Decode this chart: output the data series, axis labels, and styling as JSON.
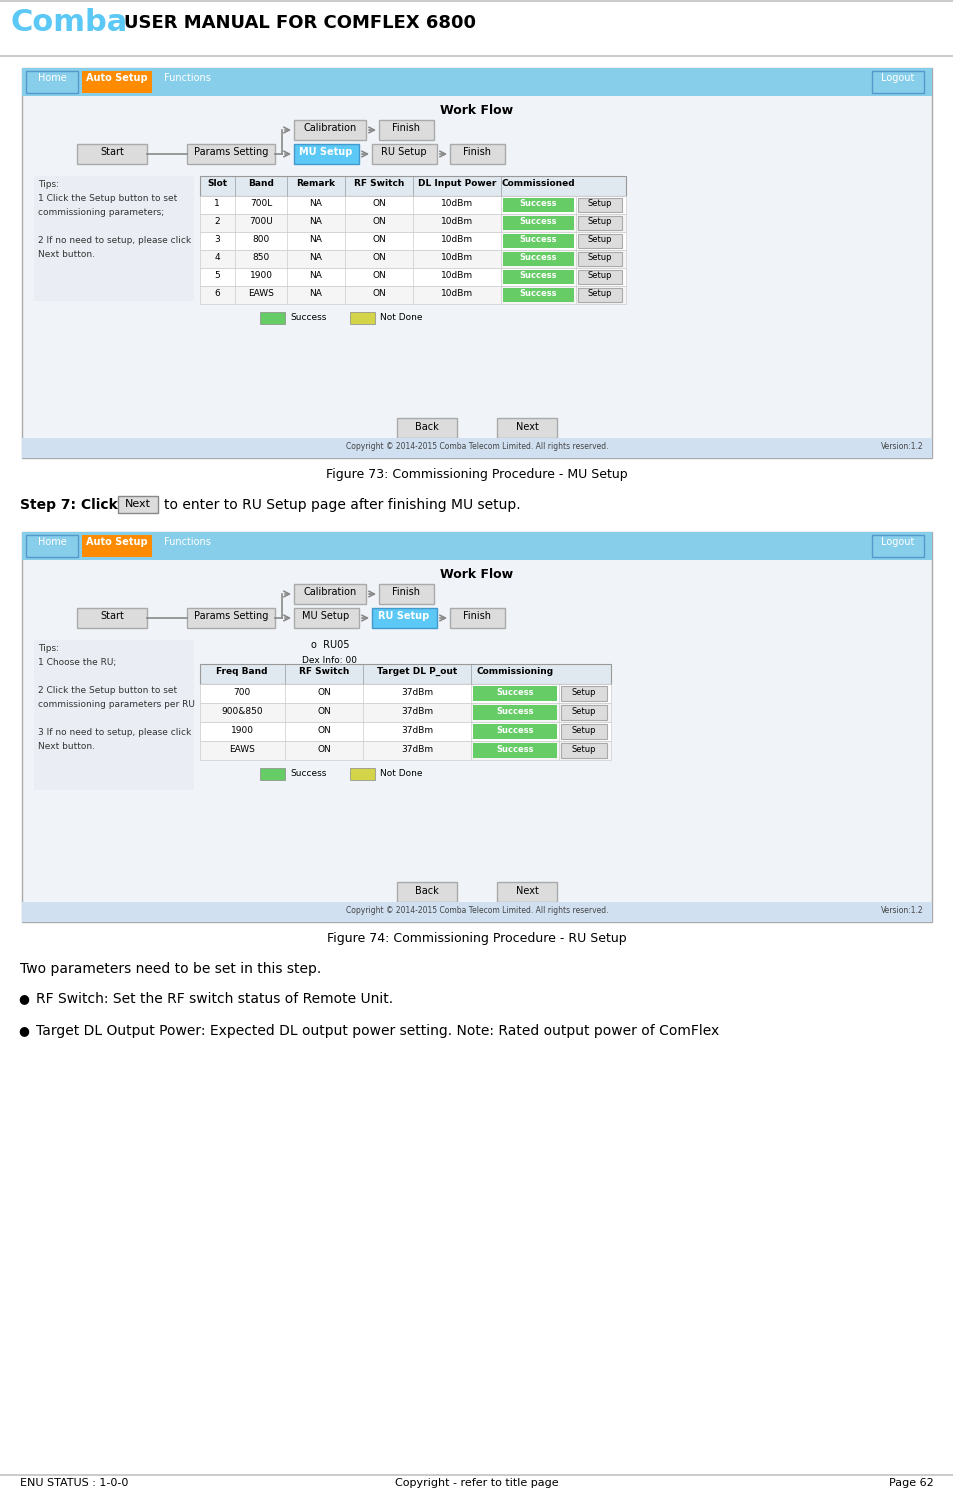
{
  "title": "USER MANUAL FOR COMFLEX 6800",
  "comba_color": "#5BC8F5",
  "nav_bg": "#87CEEB",
  "autoseup_btn_color": "#FF8C00",
  "active_step_color": "#5BC8F5",
  "success_color": "#66CC66",
  "notdone_color": "#D4D44A",
  "fig1_caption": "Figure 73: Commissioning Procedure - MU Setup",
  "fig2_caption": "Figure 74: Commissioning Procedure - RU Setup",
  "step7_text": "Step 7: Click",
  "step7_btn": "Next",
  "step7_after": "to enter to RU Setup page after finishing MU setup.",
  "two_params": "Two parameters need to be set in this step.",
  "bullet1": "RF Switch: Set the RF switch status of Remote Unit.",
  "bullet2": "Target DL Output Power: Expected DL output power setting. Note: Rated output power of ComFlex",
  "footer_left": "ENU STATUS : 1-0-0",
  "footer_center": "Copyright - refer to title page",
  "footer_right": "Page 62",
  "mu_table_headers": [
    "Slot",
    "Band",
    "Remark",
    "RF Switch",
    "DL Input Power",
    "Commissioned"
  ],
  "mu_table_rows": [
    [
      "1",
      "700L",
      "NA",
      "ON",
      "10dBm",
      "Success",
      "Setup"
    ],
    [
      "2",
      "700U",
      "NA",
      "ON",
      "10dBm",
      "Success",
      "Setup"
    ],
    [
      "3",
      "800",
      "NA",
      "ON",
      "10dBm",
      "Success",
      "Setup"
    ],
    [
      "4",
      "850",
      "NA",
      "ON",
      "10dBm",
      "Success",
      "Setup"
    ],
    [
      "5",
      "1900",
      "NA",
      "ON",
      "10dBm",
      "Success",
      "Setup"
    ],
    [
      "6",
      "EAWS",
      "NA",
      "ON",
      "10dBm",
      "Success",
      "Setup"
    ]
  ],
  "ru_table_headers": [
    "Freq Band",
    "RF Switch",
    "Target DL P_out",
    "Commissioning"
  ],
  "ru_table_rows": [
    [
      "700",
      "ON",
      "37dBm",
      "Success",
      "Setup"
    ],
    [
      "900&850",
      "ON",
      "37dBm",
      "Success",
      "Setup"
    ],
    [
      "1900",
      "ON",
      "37dBm",
      "Success",
      "Setup"
    ],
    [
      "EAWS",
      "ON",
      "37dBm",
      "Success",
      "Setup"
    ]
  ],
  "mu_tips": [
    "Tips:",
    "1 Click the Setup button to set",
    "commissioning parameters;",
    "",
    "2 If no need to setup, please click",
    "Next button."
  ],
  "ru_tips": [
    "Tips:",
    "1 Choose the RU;",
    "",
    "2 Click the Setup button to set",
    "commissioning parameters per RU",
    "",
    "3 If no need to setup, please click",
    "Next button."
  ]
}
